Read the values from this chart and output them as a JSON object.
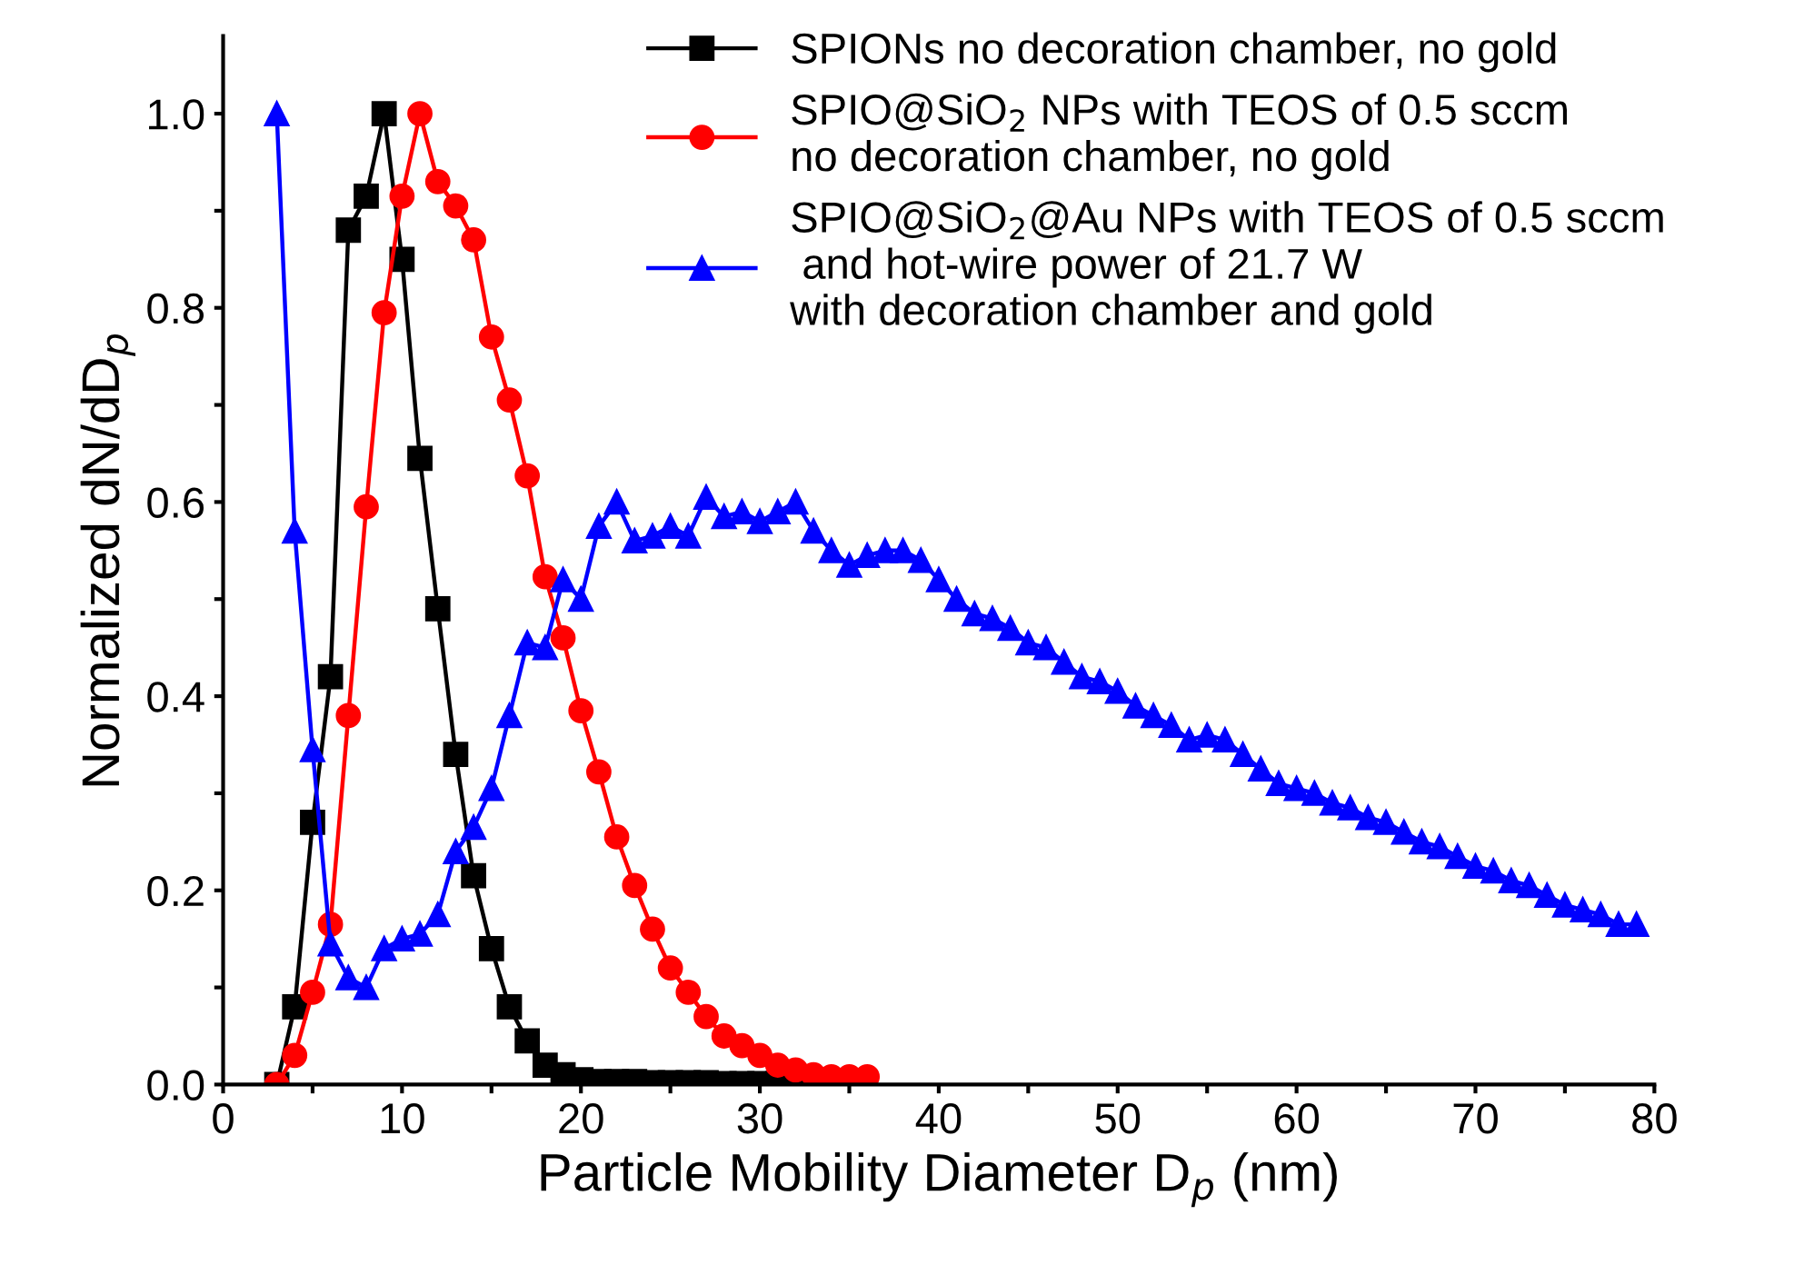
{
  "chart_data": {
    "type": "line",
    "xlabel": "Particle Mobility Diameter D$_{p}$ (nm)",
    "ylabel": "Normalized dN/dD$_{p}$",
    "series": [
      {
        "name": "SPIONs no decoration chamber, no gold",
        "color": "#000000",
        "marker": "square",
        "x": [
          3,
          4,
          5,
          6,
          7,
          8,
          9,
          10,
          11,
          12,
          13,
          14,
          15,
          16,
          17,
          18,
          19,
          20,
          21,
          22,
          23,
          24,
          25,
          26,
          27,
          28,
          29,
          30,
          31,
          32,
          33,
          34,
          35
        ],
        "values": [
          0,
          0.08,
          0.27,
          0.42,
          0.88,
          0.915,
          1.0,
          0.85,
          0.645,
          0.49,
          0.34,
          0.215,
          0.14,
          0.08,
          0.045,
          0.02,
          0.01,
          0.005,
          0.003,
          0.003,
          0.003,
          0.002,
          0.002,
          0.002,
          0.002,
          0.001,
          0.001,
          0.001,
          0.001,
          0.001,
          0.001,
          0.001,
          0.001
        ]
      },
      {
        "name": "SPIO@SiO$_{2}$ NPs with TEOS of 0.5 sccm\nno decoration chamber, no gold",
        "color": "#ff0000",
        "marker": "circle",
        "x": [
          3,
          4,
          5,
          6,
          7,
          8,
          9,
          10,
          11,
          12,
          13,
          14,
          15,
          16,
          17,
          18,
          19,
          20,
          21,
          22,
          23,
          24,
          25,
          26,
          27,
          28,
          29,
          30,
          31,
          32,
          33,
          34,
          35,
          36
        ],
        "values": [
          0,
          0.03,
          0.095,
          0.165,
          0.38,
          0.595,
          0.795,
          0.915,
          1.0,
          0.93,
          0.905,
          0.87,
          0.77,
          0.705,
          0.627,
          0.523,
          0.46,
          0.385,
          0.322,
          0.255,
          0.205,
          0.16,
          0.12,
          0.095,
          0.07,
          0.05,
          0.04,
          0.03,
          0.02,
          0.015,
          0.01,
          0.008,
          0.008,
          0.008
        ]
      },
      {
        "name": "SPIO@SiO$_{2}$@Au NPs with TEOS of 0.5 sccm\n and hot-wire power of 21.7 W\nwith decoration chamber and gold",
        "color": "#0000ff",
        "marker": "triangle",
        "x": [
          3,
          4,
          5,
          6,
          7,
          8,
          9,
          10,
          11,
          12,
          13,
          14,
          15,
          16,
          17,
          18,
          19,
          20,
          21,
          22,
          23,
          24,
          25,
          26,
          27,
          28,
          29,
          30,
          31,
          32,
          33,
          34,
          35,
          36,
          37,
          38,
          39,
          40,
          41,
          42,
          43,
          44,
          45,
          46,
          47,
          48,
          49,
          50,
          51,
          52,
          53,
          54,
          55,
          56,
          57,
          58,
          59,
          60,
          61,
          62,
          63,
          64,
          65,
          66,
          67,
          68,
          69,
          70,
          71,
          72,
          73,
          74,
          75,
          76,
          77,
          78,
          79
        ],
        "values": [
          1.0,
          0.57,
          0.345,
          0.145,
          0.11,
          0.1,
          0.14,
          0.15,
          0.155,
          0.175,
          0.24,
          0.265,
          0.305,
          0.38,
          0.455,
          0.45,
          0.52,
          0.5,
          0.575,
          0.6,
          0.56,
          0.565,
          0.575,
          0.565,
          0.605,
          0.585,
          0.59,
          0.58,
          0.59,
          0.6,
          0.57,
          0.55,
          0.535,
          0.545,
          0.55,
          0.55,
          0.54,
          0.52,
          0.5,
          0.485,
          0.48,
          0.47,
          0.455,
          0.45,
          0.435,
          0.42,
          0.415,
          0.405,
          0.39,
          0.38,
          0.37,
          0.355,
          0.36,
          0.355,
          0.34,
          0.325,
          0.31,
          0.305,
          0.3,
          0.29,
          0.285,
          0.275,
          0.27,
          0.26,
          0.25,
          0.245,
          0.235,
          0.225,
          0.22,
          0.21,
          0.205,
          0.195,
          0.185,
          0.18,
          0.175,
          0.165,
          0.165
        ]
      }
    ],
    "xlim": [
      0,
      80
    ],
    "xticks": [
      0,
      {
        "value": 5,
        "label": null
      },
      10,
      {
        "value": 15,
        "label": null
      },
      20,
      {
        "value": 25,
        "label": null
      },
      30,
      {
        "value": 35,
        "label": null
      },
      40,
      {
        "value": 45,
        "label": null
      },
      50,
      {
        "value": 55,
        "label": null
      },
      60,
      {
        "value": 65,
        "label": null
      },
      70,
      {
        "value": 75,
        "label": null
      },
      80
    ],
    "ylim": [
      0,
      1.08
    ],
    "yticks": [
      {
        "value": 0,
        "label": "0.0"
      },
      {
        "value": 0.1,
        "label": null
      },
      0.2,
      {
        "value": 0.3,
        "label": null
      },
      0.4,
      {
        "value": 0.5,
        "label": null
      },
      0.6,
      {
        "value": 0.7,
        "label": null
      },
      0.8,
      {
        "value": 0.9,
        "label": null
      },
      {
        "value": 1,
        "label": "1.0"
      }
    ],
    "grid": false,
    "legend": "top right",
    "line_style": "solid"
  }
}
